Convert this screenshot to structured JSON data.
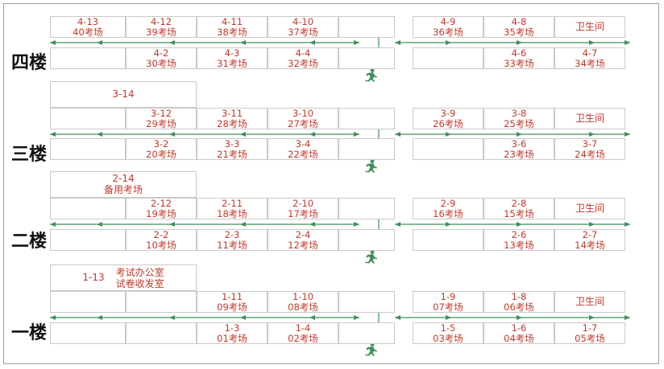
{
  "colors": {
    "room_text": "#c0392b",
    "arrow": "#3f8f5a",
    "border": "#c9c9c9",
    "floor_text": "#111111"
  },
  "icons": {
    "exit": "running-man-icon"
  },
  "floors": [
    {
      "label": "四楼",
      "top_row": [
        {
          "t": "4-13",
          "s": "40考场"
        },
        {
          "t": "4-12",
          "s": "39考场"
        },
        {
          "t": "4-11",
          "s": "38考场"
        },
        {
          "t": "4-10",
          "s": "37考场"
        },
        {
          "t": "",
          "s": ""
        },
        {
          "t": "",
          "s": ""
        },
        {
          "t": "4-9",
          "s": "36考场"
        },
        {
          "t": "4-8",
          "s": "35考场"
        },
        {
          "t": "卫生间",
          "s": ""
        }
      ],
      "bottom_row": [
        {
          "t": "",
          "s": ""
        },
        {
          "t": "4-2",
          "s": "30考场"
        },
        {
          "t": "4-3",
          "s": "31考场"
        },
        {
          "t": "4-4",
          "s": "32考场"
        },
        {
          "t": "",
          "s": ""
        },
        {
          "t": "",
          "s": ""
        },
        {
          "t": "",
          "s": ""
        },
        {
          "t": "4-6",
          "s": "33考场"
        },
        {
          "t": "4-7",
          "s": "34考场"
        }
      ]
    },
    {
      "label": "三楼",
      "big": {
        "lbl": "3-14",
        "l1": "",
        "l2": ""
      },
      "top_row": [
        {
          "t": "",
          "s": ""
        },
        {
          "t": "3-12",
          "s": "29考场"
        },
        {
          "t": "3-11",
          "s": "28考场"
        },
        {
          "t": "3-10",
          "s": "27考场"
        },
        {
          "t": "",
          "s": ""
        },
        {
          "t": "",
          "s": ""
        },
        {
          "t": "3-9",
          "s": "26考场"
        },
        {
          "t": "3-8",
          "s": "25考场"
        },
        {
          "t": "卫生间",
          "s": ""
        }
      ],
      "bottom_row": [
        {
          "t": "",
          "s": ""
        },
        {
          "t": "3-2",
          "s": "20考场"
        },
        {
          "t": "3-3",
          "s": "21考场"
        },
        {
          "t": "3-4",
          "s": "22考场"
        },
        {
          "t": "",
          "s": ""
        },
        {
          "t": "",
          "s": ""
        },
        {
          "t": "",
          "s": ""
        },
        {
          "t": "3-6",
          "s": "23考场"
        },
        {
          "t": "3-7",
          "s": "24考场"
        }
      ]
    },
    {
      "label": "二楼",
      "big": {
        "lbl": "2-14",
        "l1": "备用考场",
        "l2": ""
      },
      "top_row": [
        {
          "t": "",
          "s": ""
        },
        {
          "t": "2-12",
          "s": "19考场"
        },
        {
          "t": "2-11",
          "s": "18考场"
        },
        {
          "t": "2-10",
          "s": "17考场"
        },
        {
          "t": "",
          "s": ""
        },
        {
          "t": "",
          "s": ""
        },
        {
          "t": "2-9",
          "s": "16考场"
        },
        {
          "t": "2-8",
          "s": "15考场"
        },
        {
          "t": "卫生间",
          "s": ""
        }
      ],
      "bottom_row": [
        {
          "t": "",
          "s": ""
        },
        {
          "t": "2-2",
          "s": "10考场"
        },
        {
          "t": "2-3",
          "s": "11考场"
        },
        {
          "t": "2-4",
          "s": "12考场"
        },
        {
          "t": "",
          "s": ""
        },
        {
          "t": "",
          "s": ""
        },
        {
          "t": "",
          "s": ""
        },
        {
          "t": "2-6",
          "s": "13考场"
        },
        {
          "t": "2-7",
          "s": "14考场"
        }
      ]
    },
    {
      "label": "一楼",
      "big": {
        "lbl": "1-13",
        "l1": "考试办公室",
        "l2": "试卷收发室"
      },
      "top_row": [
        {
          "t": "",
          "s": ""
        },
        {
          "t": "",
          "s": ""
        },
        {
          "t": "1-11",
          "s": "09考场"
        },
        {
          "t": "1-10",
          "s": "08考场"
        },
        {
          "t": "",
          "s": ""
        },
        {
          "t": "",
          "s": ""
        },
        {
          "t": "1-9",
          "s": "07考场"
        },
        {
          "t": "1-8",
          "s": "06考场"
        },
        {
          "t": "卫生间",
          "s": ""
        }
      ],
      "bottom_row": [
        {
          "t": "",
          "s": ""
        },
        {
          "t": "",
          "s": ""
        },
        {
          "t": "1-3",
          "s": "01考场"
        },
        {
          "t": "1-4",
          "s": "02考场"
        },
        {
          "t": "",
          "s": ""
        },
        {
          "t": "",
          "s": ""
        },
        {
          "t": "1-5",
          "s": "03考场"
        },
        {
          "t": "1-6",
          "s": "04考场"
        },
        {
          "t": "1-7",
          "s": "05考场"
        }
      ]
    }
  ]
}
